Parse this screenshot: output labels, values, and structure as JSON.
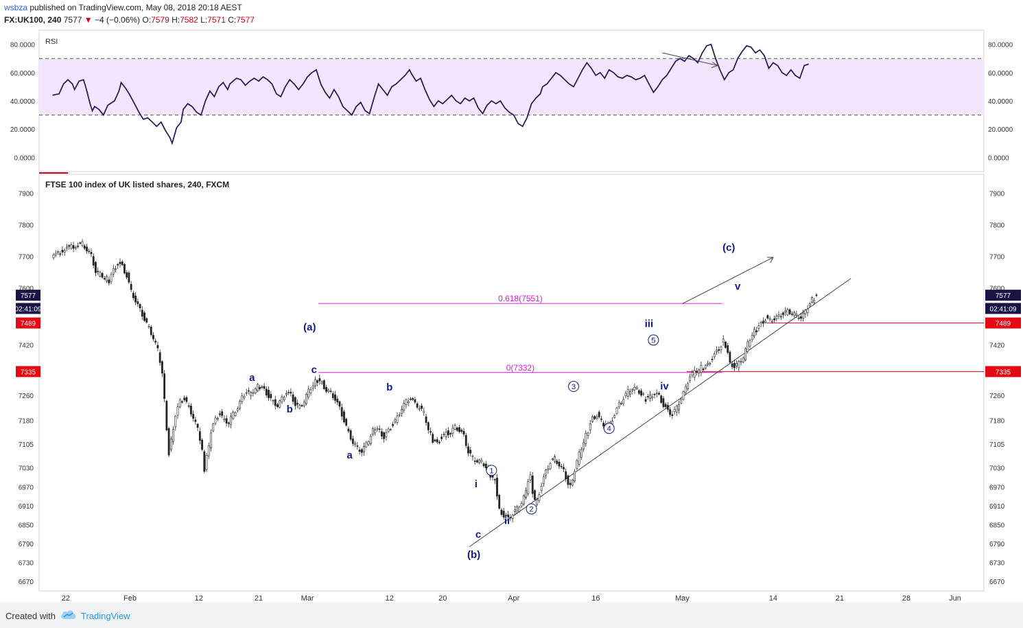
{
  "header": {
    "user": "wsbza",
    "published": "published on TradingView.com, May 08, 2018 20:18 AEST",
    "symbol": "FX:UK100, 240",
    "last": "7577",
    "change_arrow": "▼",
    "change": "−4 (−0.06%)",
    "o_label": "O:",
    "o": "7579",
    "h_label": "H:",
    "h": "7582",
    "l_label": "L:",
    "l": "7571",
    "c_label": "C:",
    "c": "7577"
  },
  "rsi": {
    "label": "RSI",
    "ylim": [
      -10,
      90
    ],
    "ticks": [
      "80.0000",
      "60.0000",
      "40.0000",
      "20.0000",
      "0.0000"
    ],
    "tick_values": [
      80,
      60,
      40,
      20,
      0
    ],
    "upper_band": 70,
    "lower_band": 30,
    "band_color": "#f3e6fc",
    "line_color": "#2a1d5c",
    "series": [
      [
        0,
        44
      ],
      [
        3,
        45
      ],
      [
        5,
        52
      ],
      [
        7,
        55
      ],
      [
        9,
        52
      ],
      [
        10,
        48
      ],
      [
        12,
        54
      ],
      [
        14,
        55
      ],
      [
        15,
        50
      ],
      [
        17,
        38
      ],
      [
        18,
        33
      ],
      [
        19,
        36
      ],
      [
        21,
        34
      ],
      [
        23,
        30
      ],
      [
        25,
        37
      ],
      [
        28,
        40
      ],
      [
        30,
        47
      ],
      [
        31,
        53
      ],
      [
        33,
        49
      ],
      [
        35,
        44
      ],
      [
        37,
        38
      ],
      [
        39,
        32
      ],
      [
        41,
        27
      ],
      [
        43,
        28
      ],
      [
        45,
        25
      ],
      [
        47,
        22
      ],
      [
        49,
        25
      ],
      [
        51,
        19
      ],
      [
        53,
        14
      ],
      [
        54,
        10
      ],
      [
        56,
        21
      ],
      [
        58,
        25
      ],
      [
        59,
        34
      ],
      [
        61,
        38
      ],
      [
        63,
        36
      ],
      [
        65,
        32
      ],
      [
        67,
        30
      ],
      [
        69,
        40
      ],
      [
        71,
        47
      ],
      [
        73,
        43
      ],
      [
        75,
        50
      ],
      [
        77,
        53
      ],
      [
        79,
        48
      ],
      [
        80,
        52
      ],
      [
        83,
        56
      ],
      [
        85,
        55
      ],
      [
        87,
        51
      ],
      [
        89,
        54
      ],
      [
        91,
        56
      ],
      [
        93,
        54
      ],
      [
        95,
        57
      ],
      [
        97,
        55
      ],
      [
        99,
        52
      ],
      [
        101,
        45
      ],
      [
        103,
        43
      ],
      [
        105,
        50
      ],
      [
        107,
        55
      ],
      [
        109,
        52
      ],
      [
        111,
        48
      ],
      [
        113,
        52
      ],
      [
        115,
        57
      ],
      [
        117,
        60
      ],
      [
        119,
        62
      ],
      [
        121,
        52
      ],
      [
        123,
        46
      ],
      [
        125,
        42
      ],
      [
        127,
        48
      ],
      [
        129,
        43
      ],
      [
        131,
        36
      ],
      [
        133,
        33
      ],
      [
        135,
        30
      ],
      [
        137,
        36
      ],
      [
        139,
        39
      ],
      [
        141,
        33
      ],
      [
        143,
        31
      ],
      [
        145,
        42
      ],
      [
        147,
        52
      ],
      [
        149,
        48
      ],
      [
        151,
        44
      ],
      [
        153,
        50
      ],
      [
        155,
        52
      ],
      [
        157,
        55
      ],
      [
        159,
        58
      ],
      [
        161,
        62
      ],
      [
        162,
        59
      ],
      [
        164,
        54
      ],
      [
        166,
        56
      ],
      [
        168,
        48
      ],
      [
        170,
        41
      ],
      [
        172,
        36
      ],
      [
        174,
        40
      ],
      [
        176,
        38
      ],
      [
        178,
        41
      ],
      [
        180,
        44
      ],
      [
        182,
        40
      ],
      [
        184,
        38
      ],
      [
        186,
        42
      ],
      [
        188,
        40
      ],
      [
        190,
        42
      ],
      [
        192,
        35
      ],
      [
        194,
        31
      ],
      [
        196,
        37
      ],
      [
        198,
        40
      ],
      [
        200,
        38
      ],
      [
        202,
        40
      ],
      [
        204,
        35
      ],
      [
        206,
        32
      ],
      [
        208,
        30
      ],
      [
        210,
        24
      ],
      [
        212,
        22
      ],
      [
        214,
        28
      ],
      [
        216,
        38
      ],
      [
        218,
        42
      ],
      [
        220,
        45
      ],
      [
        221,
        50
      ],
      [
        223,
        52
      ],
      [
        225,
        56
      ],
      [
        227,
        60
      ],
      [
        229,
        58
      ],
      [
        231,
        55
      ],
      [
        233,
        52
      ],
      [
        235,
        50
      ],
      [
        237,
        56
      ],
      [
        239,
        62
      ],
      [
        241,
        67
      ],
      [
        243,
        63
      ],
      [
        245,
        58
      ],
      [
        247,
        60
      ],
      [
        249,
        56
      ],
      [
        251,
        62
      ],
      [
        253,
        60
      ],
      [
        255,
        57
      ],
      [
        257,
        56
      ],
      [
        259,
        58
      ],
      [
        261,
        57
      ],
      [
        263,
        55
      ],
      [
        265,
        56
      ],
      [
        267,
        58
      ],
      [
        269,
        52
      ],
      [
        271,
        46
      ],
      [
        273,
        50
      ],
      [
        275,
        55
      ],
      [
        277,
        58
      ],
      [
        279,
        63
      ],
      [
        281,
        68
      ],
      [
        283,
        70
      ],
      [
        285,
        68
      ],
      [
        287,
        72
      ],
      [
        289,
        70
      ],
      [
        291,
        67
      ],
      [
        293,
        74
      ],
      [
        295,
        79
      ],
      [
        297,
        80
      ],
      [
        299,
        70
      ],
      [
        301,
        62
      ],
      [
        303,
        55
      ],
      [
        305,
        60
      ],
      [
        307,
        62
      ],
      [
        309,
        70
      ],
      [
        311,
        75
      ],
      [
        313,
        79
      ],
      [
        315,
        78
      ],
      [
        317,
        74
      ],
      [
        319,
        76
      ],
      [
        321,
        72
      ],
      [
        323,
        63
      ],
      [
        325,
        67
      ],
      [
        327,
        65
      ],
      [
        329,
        60
      ],
      [
        331,
        58
      ],
      [
        333,
        62
      ],
      [
        335,
        58
      ],
      [
        337,
        56
      ],
      [
        339,
        65
      ],
      [
        341,
        66
      ]
    ],
    "divergence_arrow": {
      "from": [
        275,
        74
      ],
      "to": [
        300,
        65
      ]
    }
  },
  "price": {
    "title": "FTSE 100 index of UK listed shares, 240, FXCM",
    "ylim": [
      6640,
      7960
    ],
    "ticks": [
      "7900",
      "7800",
      "7700",
      "7600",
      "7420",
      "7260",
      "7180",
      "7105",
      "7030",
      "6970",
      "6910",
      "6850",
      "6790",
      "6730",
      "6670"
    ],
    "tick_values": [
      7900,
      7800,
      7700,
      7600,
      7420,
      7260,
      7180,
      7105,
      7030,
      6970,
      6910,
      6850,
      6790,
      6730,
      6670
    ],
    "current_price": "7577",
    "countdown": "02:41:09",
    "level_7489": "7489",
    "level_7335": "7335",
    "series": [
      [
        0,
        7700
      ],
      [
        3,
        7710
      ],
      [
        6,
        7725
      ],
      [
        9,
        7730
      ],
      [
        12,
        7735
      ],
      [
        14,
        7740
      ],
      [
        16,
        7720
      ],
      [
        18,
        7700
      ],
      [
        20,
        7650
      ],
      [
        22,
        7640
      ],
      [
        24,
        7630
      ],
      [
        26,
        7625
      ],
      [
        28,
        7660
      ],
      [
        30,
        7680
      ],
      [
        32,
        7670
      ],
      [
        34,
        7640
      ],
      [
        36,
        7590
      ],
      [
        38,
        7560
      ],
      [
        40,
        7530
      ],
      [
        42,
        7500
      ],
      [
        44,
        7470
      ],
      [
        46,
        7440
      ],
      [
        48,
        7400
      ],
      [
        50,
        7330
      ],
      [
        51,
        7240
      ],
      [
        52,
        7150
      ],
      [
        53,
        7080
      ],
      [
        54,
        7120
      ],
      [
        56,
        7200
      ],
      [
        58,
        7240
      ],
      [
        60,
        7250
      ],
      [
        62,
        7220
      ],
      [
        64,
        7190
      ],
      [
        66,
        7150
      ],
      [
        67,
        7120
      ],
      [
        68,
        7080
      ],
      [
        69,
        7020
      ],
      [
        70,
        7060
      ],
      [
        71,
        7100
      ],
      [
        72,
        7150
      ],
      [
        74,
        7185
      ],
      [
        76,
        7205
      ],
      [
        78,
        7180
      ],
      [
        80,
        7175
      ],
      [
        82,
        7200
      ],
      [
        84,
        7220
      ],
      [
        86,
        7250
      ],
      [
        88,
        7270
      ],
      [
        90,
        7260
      ],
      [
        92,
        7280
      ],
      [
        94,
        7290
      ],
      [
        96,
        7280
      ],
      [
        98,
        7260
      ],
      [
        100,
        7240
      ],
      [
        102,
        7230
      ],
      [
        104,
        7250
      ],
      [
        106,
        7270
      ],
      [
        108,
        7260
      ],
      [
        110,
        7230
      ],
      [
        112,
        7220
      ],
      [
        114,
        7240
      ],
      [
        116,
        7270
      ],
      [
        118,
        7290
      ],
      [
        120,
        7310
      ],
      [
        122,
        7300
      ],
      [
        124,
        7280
      ],
      [
        126,
        7270
      ],
      [
        128,
        7250
      ],
      [
        130,
        7220
      ],
      [
        132,
        7180
      ],
      [
        134,
        7140
      ],
      [
        136,
        7110
      ],
      [
        138,
        7090
      ],
      [
        140,
        7080
      ],
      [
        142,
        7100
      ],
      [
        144,
        7130
      ],
      [
        146,
        7160
      ],
      [
        148,
        7150
      ],
      [
        150,
        7130
      ],
      [
        152,
        7150
      ],
      [
        154,
        7170
      ],
      [
        156,
        7190
      ],
      [
        158,
        7220
      ],
      [
        160,
        7240
      ],
      [
        162,
        7250
      ],
      [
        164,
        7230
      ],
      [
        166,
        7220
      ],
      [
        168,
        7200
      ],
      [
        170,
        7150
      ],
      [
        172,
        7120
      ],
      [
        174,
        7110
      ],
      [
        176,
        7130
      ],
      [
        178,
        7140
      ],
      [
        180,
        7145
      ],
      [
        182,
        7160
      ],
      [
        184,
        7150
      ],
      [
        186,
        7130
      ],
      [
        188,
        7080
      ],
      [
        190,
        7060
      ],
      [
        192,
        7050
      ],
      [
        194,
        7045
      ],
      [
        196,
        7030
      ],
      [
        198,
        7010
      ],
      [
        200,
        6990
      ],
      [
        201,
        6950
      ],
      [
        202,
        6900
      ],
      [
        204,
        6880
      ],
      [
        206,
        6870
      ],
      [
        208,
        6885
      ],
      [
        210,
        6900
      ],
      [
        212,
        6920
      ],
      [
        214,
        6950
      ],
      [
        215,
        6990
      ],
      [
        216,
        7000
      ],
      [
        217,
        6950
      ],
      [
        218,
        6920
      ],
      [
        219,
        6930
      ],
      [
        221,
        6980
      ],
      [
        223,
        7020
      ],
      [
        225,
        7050
      ],
      [
        227,
        7060
      ],
      [
        229,
        7040
      ],
      [
        231,
        7020
      ],
      [
        233,
        6980
      ],
      [
        234,
        6970
      ],
      [
        236,
        7020
      ],
      [
        238,
        7070
      ],
      [
        240,
        7110
      ],
      [
        242,
        7150
      ],
      [
        244,
        7190
      ],
      [
        246,
        7200
      ],
      [
        248,
        7180
      ],
      [
        250,
        7160
      ],
      [
        252,
        7170
      ],
      [
        254,
        7200
      ],
      [
        256,
        7230
      ],
      [
        258,
        7250
      ],
      [
        260,
        7270
      ],
      [
        262,
        7280
      ],
      [
        264,
        7275
      ],
      [
        266,
        7260
      ],
      [
        268,
        7250
      ],
      [
        270,
        7260
      ],
      [
        272,
        7270
      ],
      [
        274,
        7260
      ],
      [
        276,
        7230
      ],
      [
        278,
        7210
      ],
      [
        280,
        7200
      ],
      [
        282,
        7220
      ],
      [
        284,
        7250
      ],
      [
        286,
        7280
      ],
      [
        288,
        7320
      ],
      [
        290,
        7330
      ],
      [
        292,
        7340
      ],
      [
        294,
        7350
      ],
      [
        296,
        7360
      ],
      [
        298,
        7380
      ],
      [
        300,
        7400
      ],
      [
        302,
        7420
      ],
      [
        303,
        7435
      ],
      [
        305,
        7400
      ],
      [
        306,
        7360
      ],
      [
        308,
        7350
      ],
      [
        310,
        7360
      ],
      [
        312,
        7380
      ],
      [
        314,
        7420
      ],
      [
        316,
        7450
      ],
      [
        318,
        7470
      ],
      [
        320,
        7490
      ],
      [
        322,
        7505
      ],
      [
        324,
        7500
      ],
      [
        326,
        7505
      ],
      [
        328,
        7510
      ],
      [
        330,
        7520
      ],
      [
        332,
        7525
      ],
      [
        334,
        7520
      ],
      [
        336,
        7510
      ],
      [
        338,
        7505
      ],
      [
        340,
        7520
      ],
      [
        342,
        7550
      ],
      [
        344,
        7570
      ],
      [
        345,
        7577
      ]
    ],
    "fib_0618_label": "0.618(7551)",
    "fib_0_label": "0(7332)",
    "fib_0618": 7551,
    "fib_0": 7332,
    "fib_0618_range": [
      120,
      302
    ],
    "fib_0_range": [
      120,
      302
    ],
    "trendline": {
      "from": [
        188,
        6780
      ],
      "to": [
        360,
        7630
      ]
    },
    "wave_arrow": {
      "from": [
        284,
        7550
      ],
      "to": [
        325,
        7697
      ]
    },
    "level_line_7489": {
      "from": [
        322,
        7489
      ]
    },
    "level_line_7335": {
      "from": [
        286,
        7335
      ]
    },
    "wave_labels": [
      {
        "text": "a",
        "x": 90,
        "y": 7305,
        "style": "letter"
      },
      {
        "text": "b",
        "x": 107,
        "y": 7205,
        "style": "letter"
      },
      {
        "text": "c",
        "x": 118,
        "y": 7330,
        "style": "letter"
      },
      {
        "text": "(a)",
        "x": 116,
        "y": 7465,
        "style": "letter"
      },
      {
        "text": "b",
        "x": 152,
        "y": 7275,
        "style": "letter"
      },
      {
        "text": "a",
        "x": 134,
        "y": 7060,
        "style": "letter"
      },
      {
        "text": "c",
        "x": 192,
        "y": 6808,
        "style": "letter"
      },
      {
        "text": "(b)",
        "x": 190,
        "y": 6744,
        "style": "letter"
      },
      {
        "text": "i",
        "x": 191,
        "y": 6968,
        "style": "letter"
      },
      {
        "text": "ii",
        "x": 205,
        "y": 6852,
        "style": "letter"
      },
      {
        "text": "iii",
        "x": 269,
        "y": 7476,
        "style": "letter"
      },
      {
        "text": "iv",
        "x": 276,
        "y": 7278,
        "style": "letter"
      },
      {
        "text": "v",
        "x": 309,
        "y": 7595,
        "style": "letter"
      },
      {
        "text": "(c)",
        "x": 305,
        "y": 7718,
        "style": "letter"
      }
    ],
    "circle_labels": [
      {
        "text": "1",
        "x": 198,
        "y": 7022
      },
      {
        "text": "2",
        "x": 216,
        "y": 6900
      },
      {
        "text": "3",
        "x": 235,
        "y": 7288
      },
      {
        "text": "4",
        "x": 251,
        "y": 7155
      },
      {
        "text": "5",
        "x": 271,
        "y": 7435
      }
    ]
  },
  "x_axis": {
    "labels": [
      {
        "text": "22",
        "x": 6
      },
      {
        "text": "Feb",
        "x": 35
      },
      {
        "text": "12",
        "x": 66
      },
      {
        "text": "21",
        "x": 93
      },
      {
        "text": "Mar",
        "x": 115
      },
      {
        "text": "12",
        "x": 152
      },
      {
        "text": "20",
        "x": 176
      },
      {
        "text": "Apr",
        "x": 208
      },
      {
        "text": "16",
        "x": 245
      },
      {
        "text": "May",
        "x": 284
      },
      {
        "text": "14",
        "x": 325
      },
      {
        "text": "21",
        "x": 355
      },
      {
        "text": "28",
        "x": 385
      },
      {
        "text": "Jun",
        "x": 407
      }
    ],
    "domain": [
      -6,
      420
    ]
  },
  "footer": {
    "created_with": "Created with",
    "brand": "TradingView"
  }
}
